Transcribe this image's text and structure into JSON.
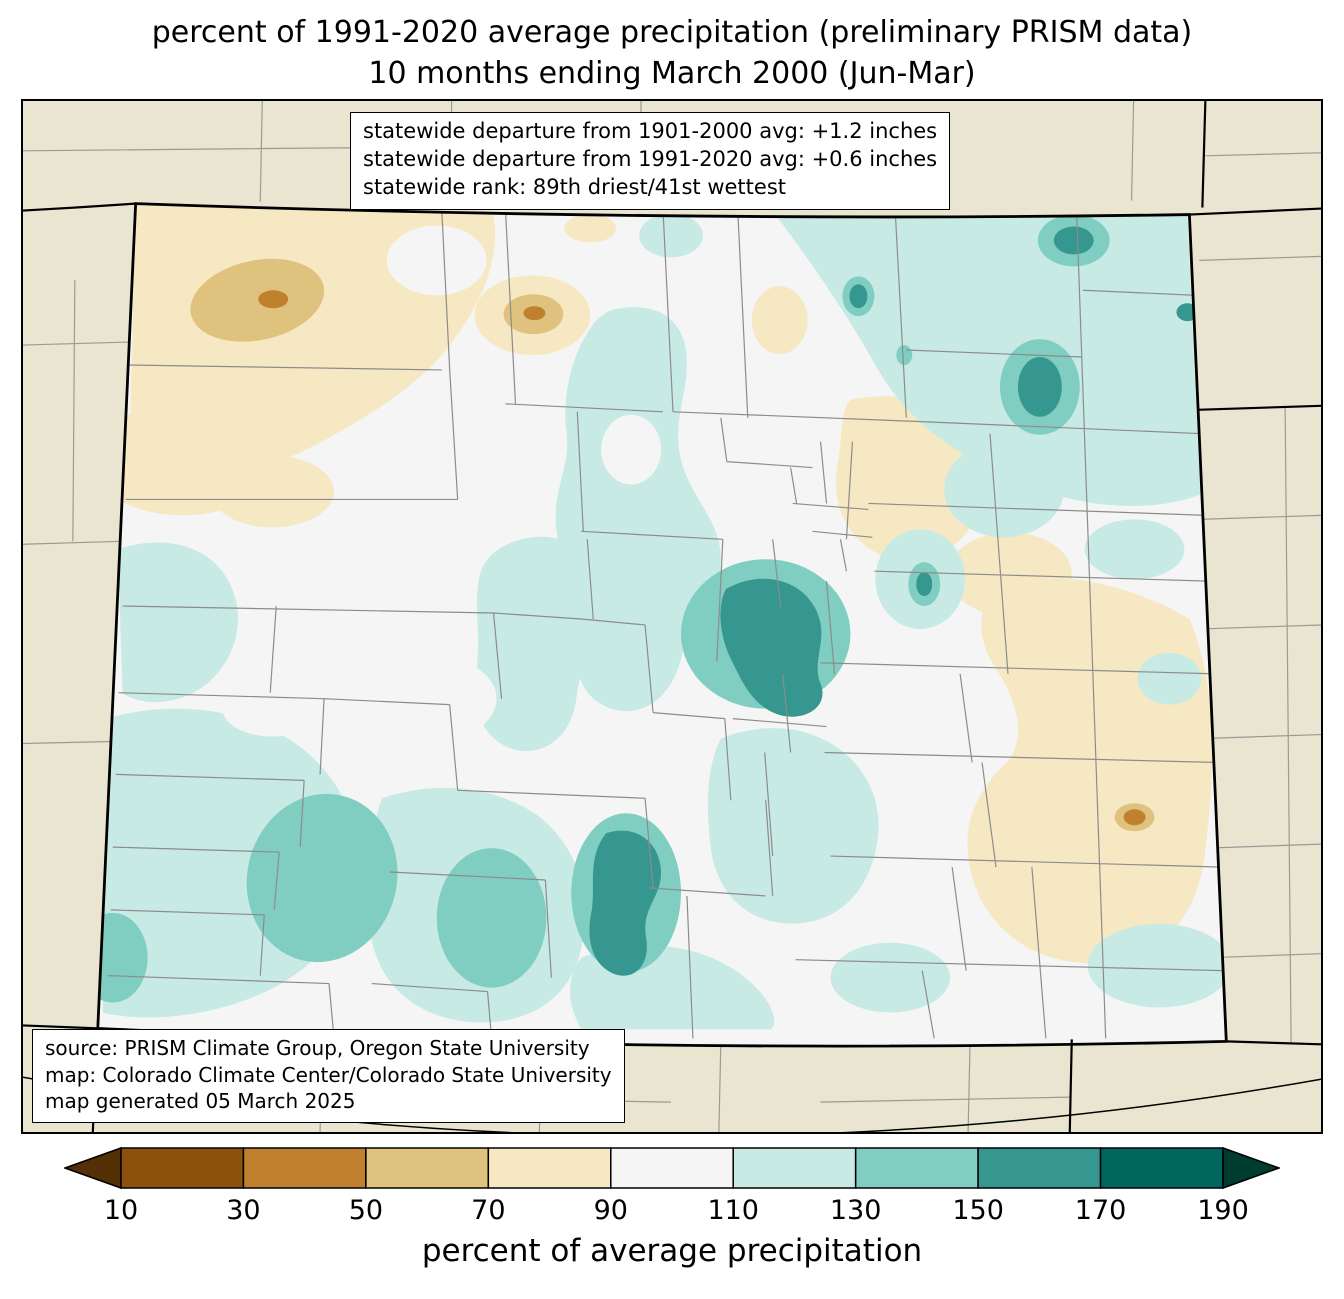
{
  "title": {
    "line1": "percent of 1991-2020 average precipitation (preliminary PRISM data)",
    "line2": "10 months ending March 2000 (Jun-Mar)"
  },
  "stats_box": {
    "lines": [
      "statewide departure from 1901-2000 avg: +1.2 inches",
      "statewide departure from 1991-2020 avg: +0.6 inches",
      "statewide rank: 89th driest/41st wettest"
    ]
  },
  "source_box": {
    "lines": [
      "source: PRISM Climate Group, Oregon State University",
      "map: Colorado Climate Center/Colorado State University",
      "map generated 05 March 2025"
    ]
  },
  "colorbar": {
    "label": "percent of average precipitation",
    "tick_labels": [
      "10",
      "30",
      "50",
      "70",
      "90",
      "110",
      "130",
      "150",
      "170",
      "190"
    ],
    "segment_colors": [
      "#8c510a",
      "#bf812d",
      "#dfc27d",
      "#f6e8c3",
      "#f5f5f5",
      "#c7eae5",
      "#80cdc1",
      "#35978f",
      "#01665e"
    ],
    "left_arrow_color": "#543005",
    "right_arrow_color": "#003c30"
  },
  "map_colors": {
    "outside_state_background": "#e9e5d0",
    "state_fill": "#f5f5f5",
    "county_line": "#8c8c8c",
    "state_border": "#000000"
  }
}
